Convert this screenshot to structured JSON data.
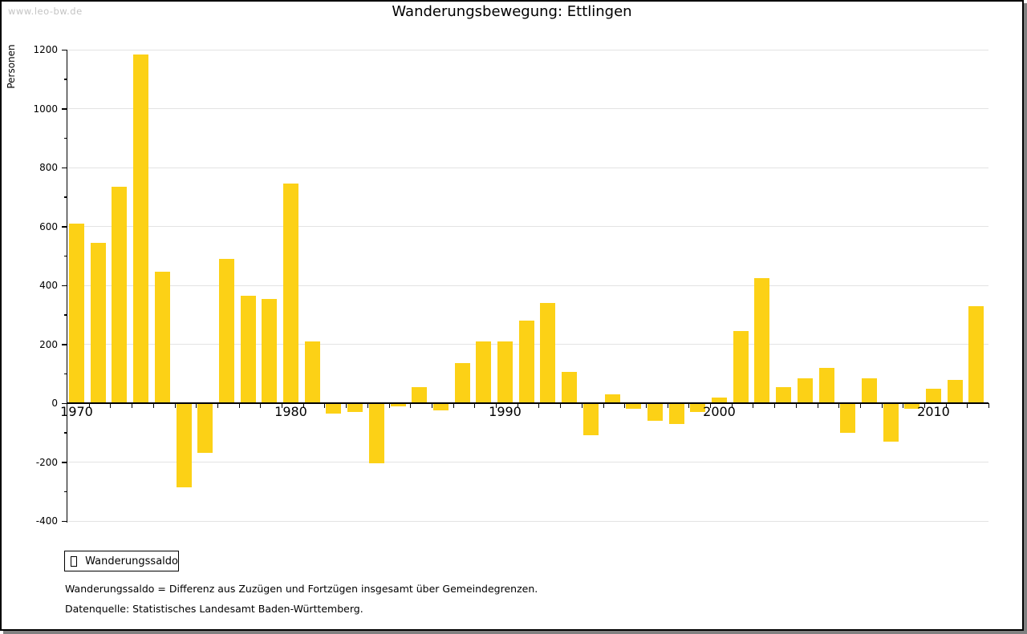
{
  "watermark": "www.leo-bw.de",
  "footnotes": [
    "Wanderungssaldo = Differenz aus Zuzügen und Fortzügen insgesamt über Gemeindegrenzen.",
    "Datenquelle: Statistisches Landesamt Baden-Württemberg."
  ],
  "chart_data": {
    "type": "bar",
    "title": "Wanderungsbewegung: Ettlingen",
    "ylabel": "Personen",
    "xlabel": "",
    "legend_label": "Wanderungssaldo",
    "legend_position": "bottom-left",
    "grid": "horizontal-major-only",
    "ylim": [
      -400,
      1200
    ],
    "ytick_major": 200,
    "ytick_minor": 100,
    "xtick_label_years": [
      1970,
      1980,
      1990,
      2000,
      2010
    ],
    "bar_color": "#FCD116",
    "x": [
      1970,
      1971,
      1972,
      1973,
      1974,
      1975,
      1976,
      1977,
      1978,
      1979,
      1980,
      1981,
      1982,
      1983,
      1984,
      1985,
      1986,
      1987,
      1988,
      1989,
      1990,
      1991,
      1992,
      1993,
      1994,
      1995,
      1996,
      1997,
      1998,
      1999,
      2000,
      2001,
      2002,
      2003,
      2004,
      2005,
      2006,
      2007,
      2008,
      2009,
      2010,
      2011,
      2012
    ],
    "values": [
      610,
      545,
      735,
      1185,
      445,
      -285,
      -170,
      490,
      365,
      355,
      745,
      210,
      -35,
      -30,
      -205,
      -10,
      55,
      -25,
      135,
      210,
      210,
      280,
      340,
      105,
      -110,
      30,
      -20,
      -60,
      -70,
      -30,
      20,
      245,
      425,
      55,
      85,
      120,
      -100,
      85,
      -130,
      -20,
      50,
      80,
      330
    ]
  }
}
